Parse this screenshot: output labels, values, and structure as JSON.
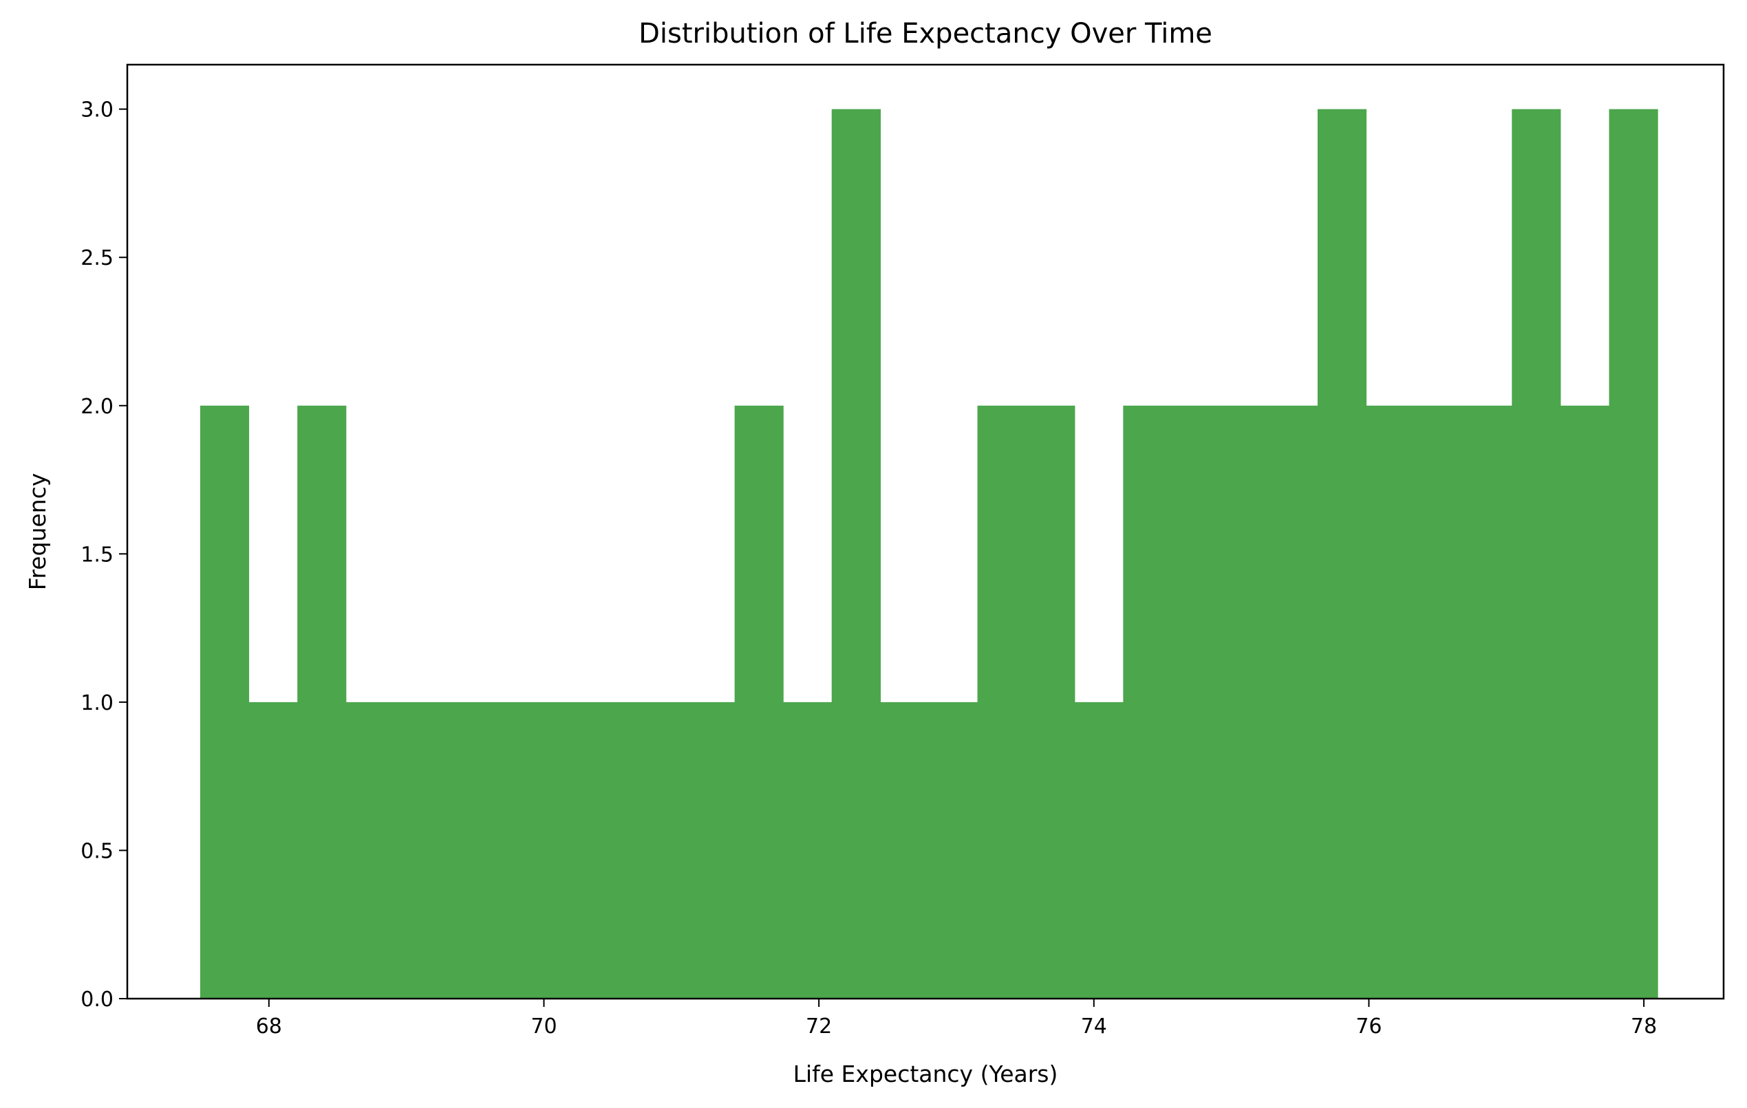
{
  "chart_data": {
    "type": "bar",
    "title": "Distribution of Life Expectancy Over Time",
    "xlabel": "Life Expectancy (Years)",
    "ylabel": "Frequency",
    "xlim": [
      66.97,
      78.58
    ],
    "ylim": [
      0,
      3.15
    ],
    "xticks": [
      68,
      70,
      72,
      74,
      76,
      78
    ],
    "xtick_labels": [
      "68",
      "70",
      "72",
      "74",
      "76",
      "78"
    ],
    "yticks": [
      0,
      0.5,
      1,
      1.5,
      2,
      2.5,
      3
    ],
    "ytick_labels": [
      "0.0",
      "0.5",
      "1.0",
      "1.5",
      "2.0",
      "2.5",
      "3.0"
    ],
    "bar_color": "#4ca64c",
    "bin_edges": [
      67.5,
      67.853,
      68.207,
      68.56,
      68.913,
      69.267,
      69.62,
      69.973,
      70.327,
      70.68,
      71.033,
      71.387,
      71.74,
      72.093,
      72.447,
      72.8,
      73.153,
      73.507,
      73.86,
      74.213,
      74.567,
      74.92,
      75.273,
      75.627,
      75.98,
      76.333,
      76.687,
      77.04,
      77.393,
      77.747,
      78.1
    ],
    "values": [
      2,
      1,
      2,
      1,
      1,
      1,
      1,
      1,
      1,
      1,
      1,
      2,
      1,
      3,
      1,
      1,
      2,
      2,
      1,
      2,
      2,
      2,
      2,
      3,
      2,
      2,
      2,
      3,
      2,
      3
    ],
    "grid": false,
    "legend": "none"
  }
}
